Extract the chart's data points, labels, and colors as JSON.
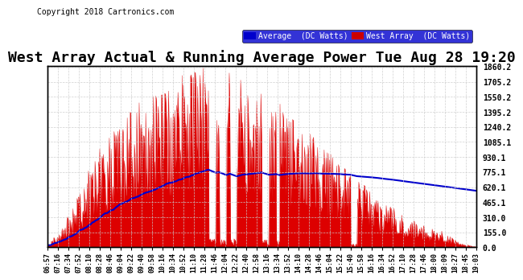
{
  "title": "West Array Actual & Running Average Power Tue Aug 28 19:20",
  "copyright": "Copyright 2018 Cartronics.com",
  "ylabel_right_ticks": [
    0.0,
    155.0,
    310.0,
    465.1,
    620.1,
    775.1,
    930.1,
    1085.1,
    1240.2,
    1395.2,
    1550.2,
    1705.2,
    1860.2
  ],
  "ymax": 1860.2,
  "ymin": 0.0,
  "legend_labels": [
    "Average  (DC Watts)",
    "West Array  (DC Watts)"
  ],
  "legend_colors": [
    "#0000cc",
    "#cc0000"
  ],
  "bg_color": "#ffffff",
  "plot_bg_color": "#ffffff",
  "grid_color": "#cccccc",
  "title_fontsize": 13,
  "x_tick_labels": [
    "06:57",
    "07:16",
    "07:34",
    "07:52",
    "08:10",
    "08:28",
    "08:46",
    "09:04",
    "09:22",
    "09:40",
    "09:58",
    "10:16",
    "10:34",
    "10:52",
    "11:10",
    "11:28",
    "11:46",
    "12:04",
    "12:22",
    "12:40",
    "12:58",
    "13:16",
    "13:34",
    "13:52",
    "14:10",
    "14:28",
    "14:46",
    "15:04",
    "15:22",
    "15:40",
    "15:58",
    "16:16",
    "16:34",
    "16:52",
    "17:10",
    "17:28",
    "17:46",
    "18:00",
    "18:09",
    "18:27",
    "18:45",
    "19:03"
  ]
}
